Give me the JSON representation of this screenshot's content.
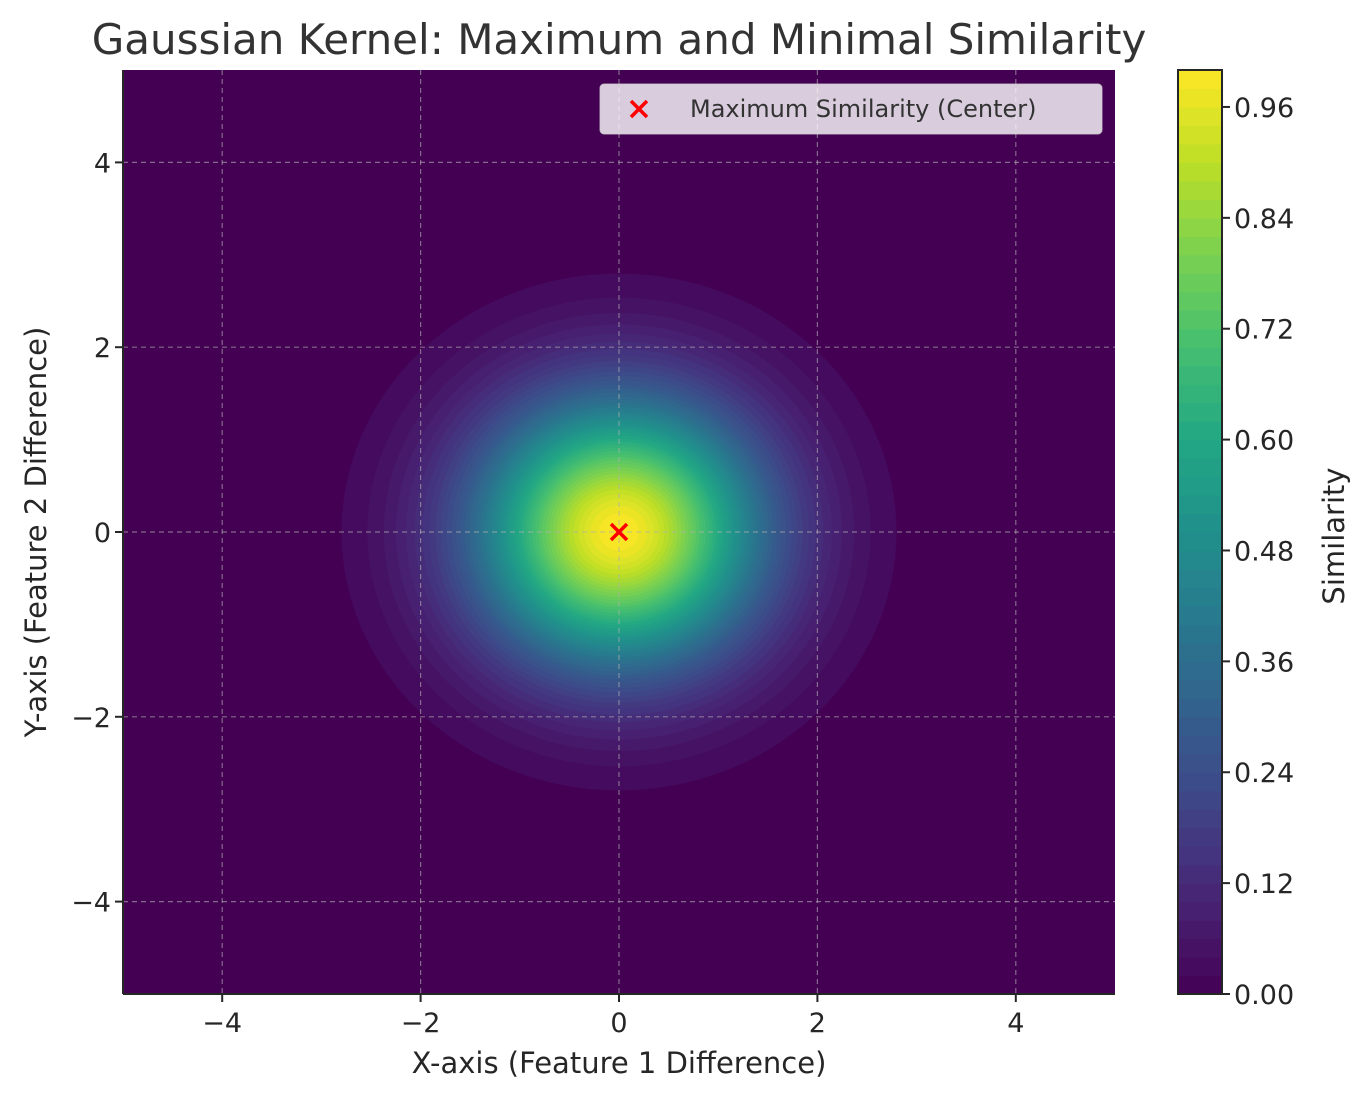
{
  "chart_data": {
    "type": "heatmap",
    "subtype": "filled-contour",
    "title": "Gaussian Kernel: Maximum and Minimal Similarity",
    "xlabel": "X-axis (Feature 1 Difference)",
    "ylabel": "Y-axis (Feature 2 Difference)",
    "xlim": [
      -5,
      5
    ],
    "ylim": [
      -5,
      5
    ],
    "x_ticks": [
      -4,
      -2,
      0,
      2,
      4
    ],
    "y_ticks": [
      -4,
      -2,
      0,
      2,
      4
    ],
    "x_tick_labels": [
      "−4",
      "−2",
      "0",
      "2",
      "4"
    ],
    "y_tick_labels": [
      "−4",
      "−2",
      "0",
      "2",
      "4"
    ],
    "function": "exp(-(x^2 + y^2) / 2)",
    "sigma": 1.0,
    "contour_levels": 50,
    "colormap": "viridis",
    "grid": true,
    "colorbar": {
      "label": "Similarity",
      "range": [
        0,
        1
      ],
      "ticks": [
        0.0,
        0.12,
        0.24,
        0.36,
        0.48,
        0.6,
        0.72,
        0.84,
        0.96
      ],
      "tick_labels": [
        "0.00",
        "0.12",
        "0.24",
        "0.36",
        "0.48",
        "0.60",
        "0.72",
        "0.84",
        "0.96"
      ]
    },
    "series": [
      {
        "name": "Maximum Similarity (Center)",
        "type": "scatter",
        "marker": "x",
        "color": "#ff0000",
        "points": [
          [
            0,
            0
          ]
        ]
      }
    ],
    "legend": {
      "placement": "top-right",
      "entries": [
        "Maximum Similarity (Center)"
      ]
    }
  }
}
